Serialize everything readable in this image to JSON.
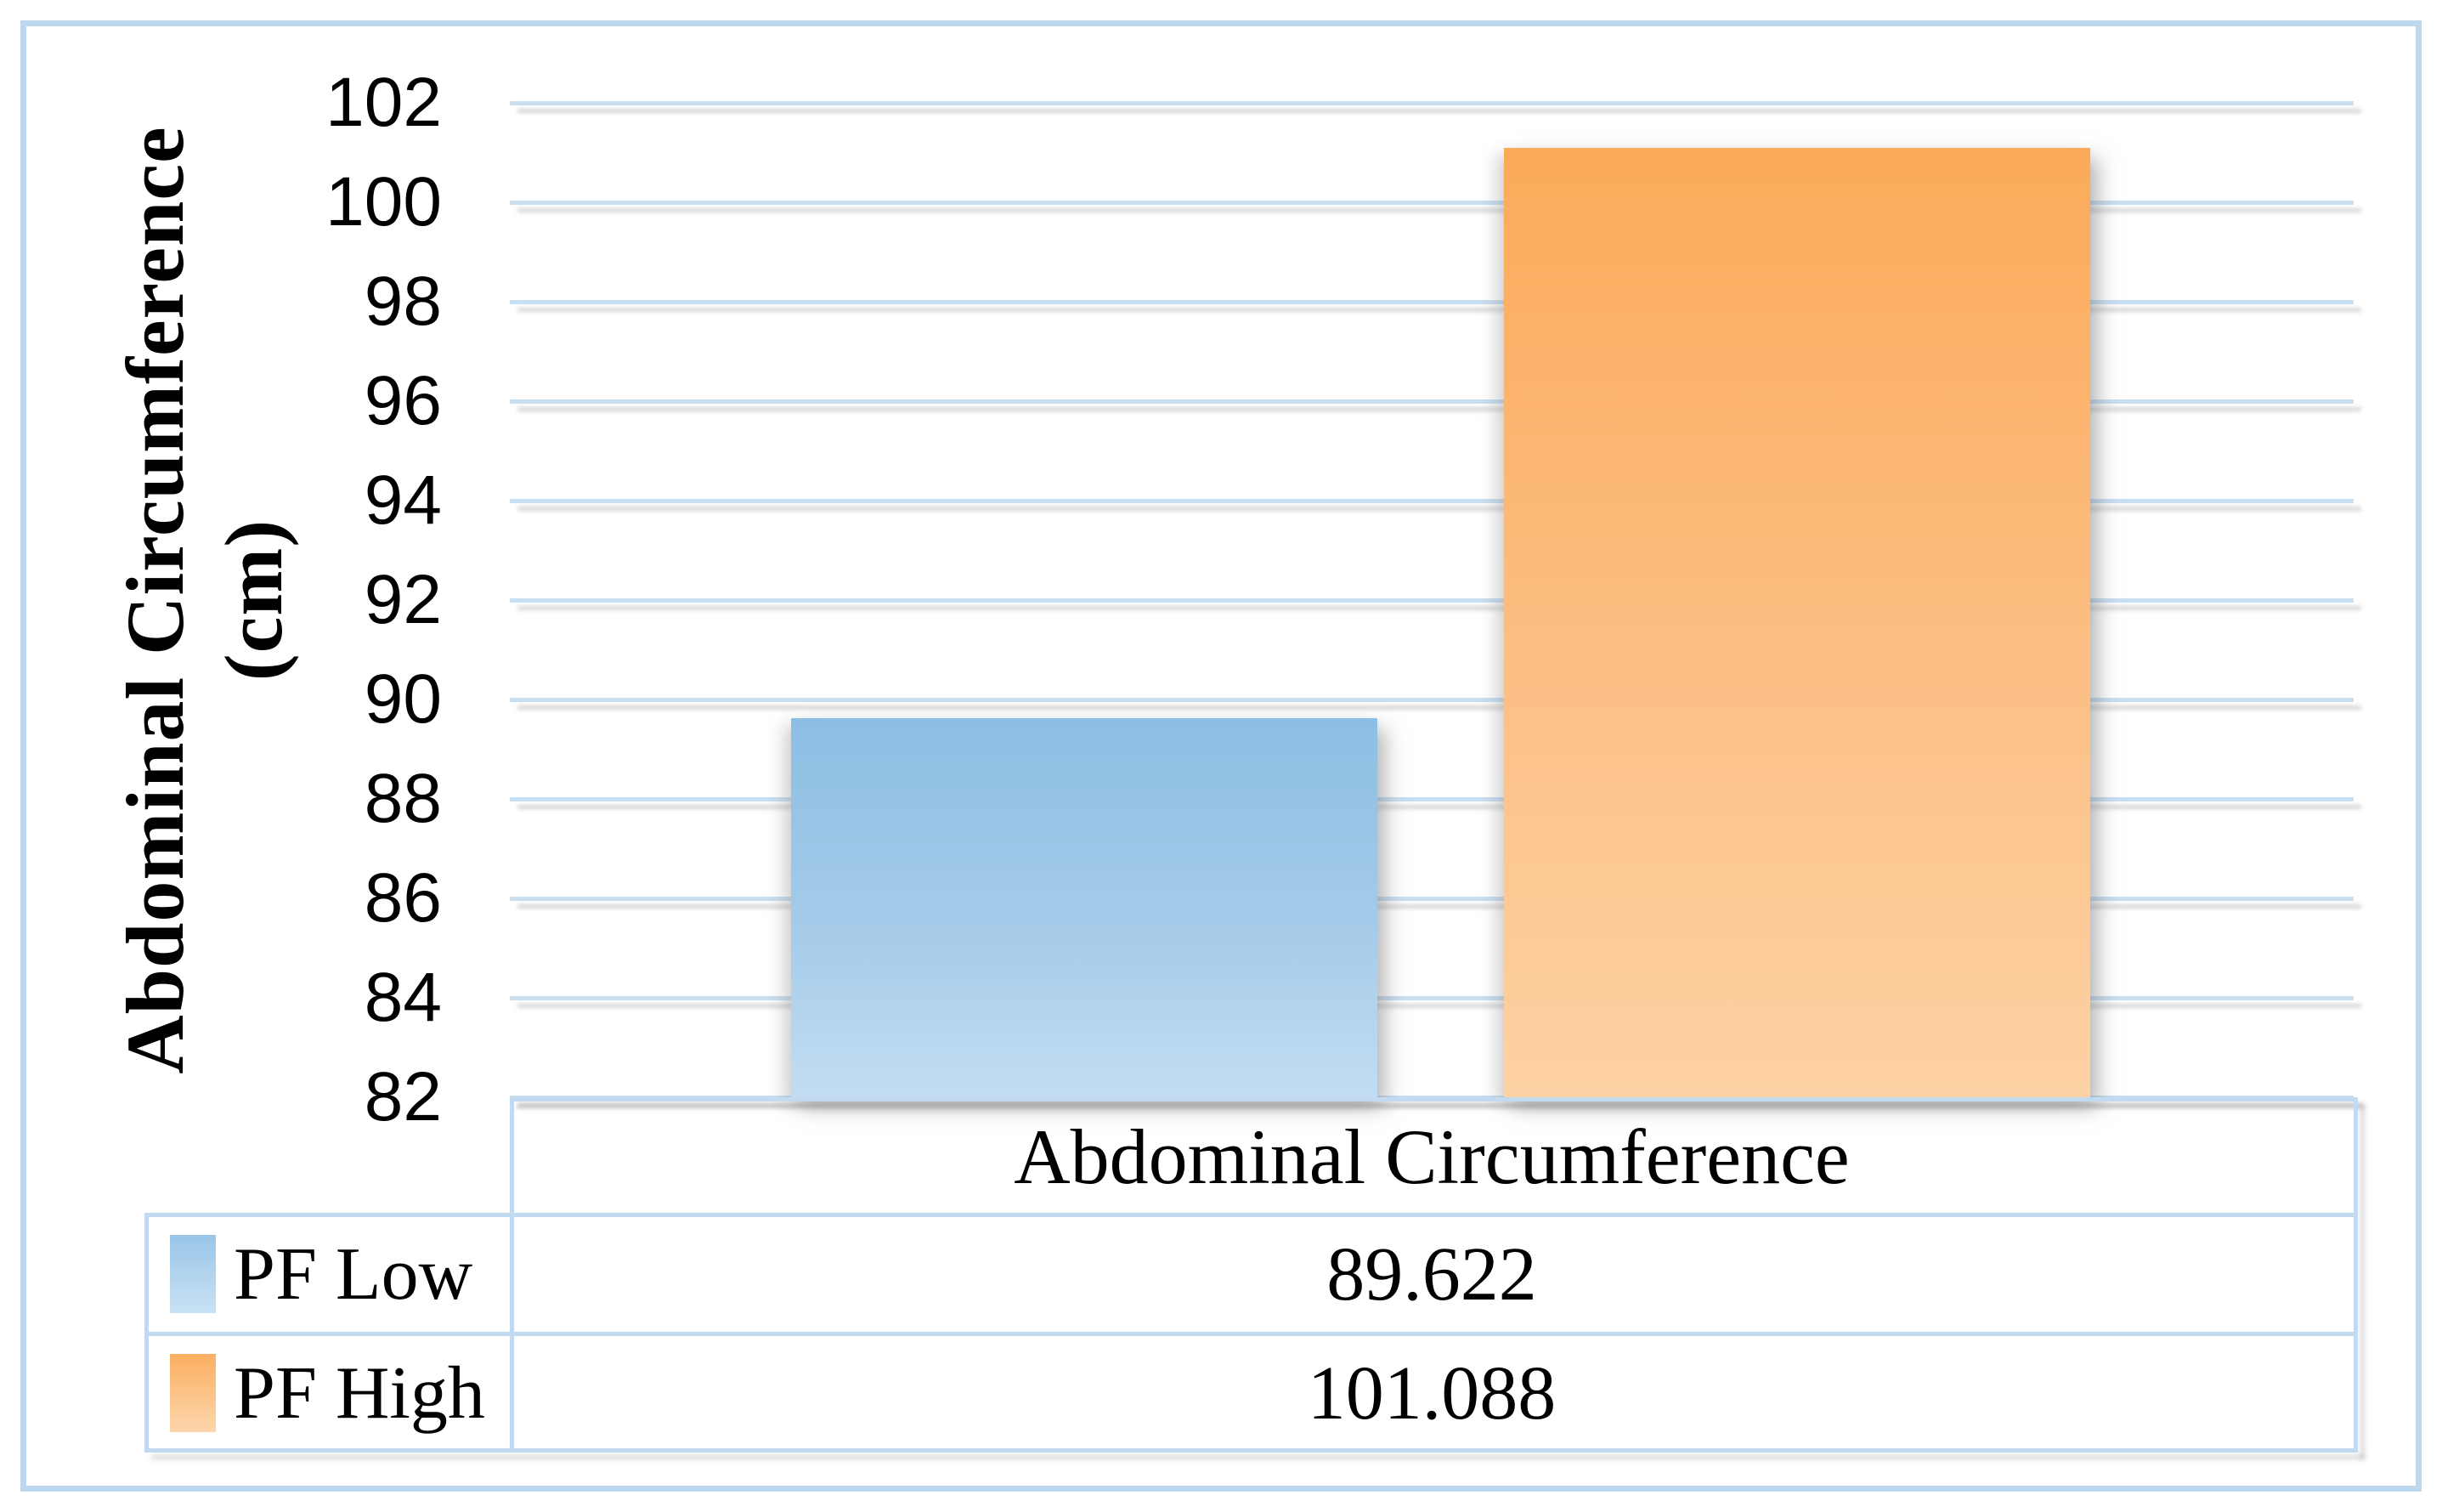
{
  "chart_data": {
    "type": "bar",
    "title": "",
    "categories": [
      "Abdominal Circumference"
    ],
    "series": [
      {
        "name": "PF Low",
        "values": [
          89.622
        ]
      },
      {
        "name": "PF High",
        "values": [
          101.088
        ]
      }
    ],
    "xlabel": "",
    "ylabel": "Abdominal Circumference (cm)",
    "ylim": [
      82,
      102
    ],
    "ytick_step": 2,
    "yticks": [
      "102",
      "100",
      "98",
      "96",
      "94",
      "92",
      "90",
      "88",
      "86",
      "84",
      "82"
    ],
    "grid": "on",
    "gridline_color": "#c8def1",
    "legend_position": "data-table-left-column",
    "series_colors": [
      {
        "name": "PF Low",
        "top": "#8cbee3",
        "bottom": "#c2ddf2"
      },
      {
        "name": "PF High",
        "top": "#fbaa59",
        "bottom": "#fdd2a4"
      }
    ]
  },
  "axis_title": {
    "line1": "Abdominal Circumference",
    "line2": "(cm)"
  },
  "data_table": {
    "category_header": "Abdominal Circumference",
    "rows": [
      {
        "label": "PF Low",
        "value": "89.622",
        "swatch_color": "#9ac5e8"
      },
      {
        "label": "PF High",
        "value": "101.088",
        "swatch_color": "#fbaf61"
      }
    ]
  },
  "colors": {
    "frame_border": "#bdd7ee",
    "table_border": "#c2daf0",
    "background": "#ffffff",
    "text": "#000000"
  }
}
